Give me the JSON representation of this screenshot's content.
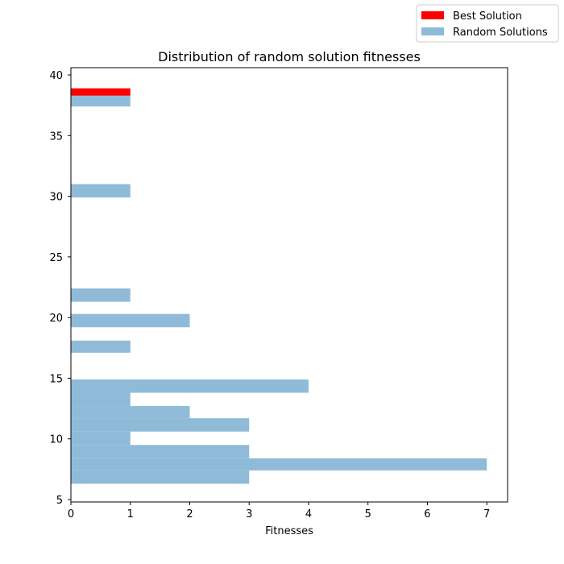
{
  "chart_data": {
    "type": "bar",
    "orientation": "horizontal",
    "title": "Distribution of random solution fitnesses",
    "xlabel": "Fitnesses",
    "ylabel": "",
    "xlim": [
      0,
      7.35
    ],
    "ylim": [
      4.8,
      40.6
    ],
    "x_ticks": [
      0,
      1,
      2,
      3,
      4,
      5,
      6,
      7
    ],
    "y_ticks": [
      5,
      10,
      15,
      20,
      25,
      30,
      35,
      40
    ],
    "grid": false,
    "legend_position": "top-right",
    "series": [
      {
        "name": "Best Solution",
        "color": "#ff0000",
        "bins": [
          {
            "y0": 38.3,
            "y1": 38.9,
            "value": 1
          }
        ]
      },
      {
        "name": "Random Solutions",
        "color": "#8fbbd9",
        "bins": [
          {
            "y0": 6.3,
            "y1": 7.4,
            "value": 3
          },
          {
            "y0": 7.4,
            "y1": 8.4,
            "value": 7
          },
          {
            "y0": 8.4,
            "y1": 9.5,
            "value": 3
          },
          {
            "y0": 9.5,
            "y1": 10.6,
            "value": 1
          },
          {
            "y0": 10.6,
            "y1": 11.7,
            "value": 3
          },
          {
            "y0": 11.7,
            "y1": 12.7,
            "value": 2
          },
          {
            "y0": 12.7,
            "y1": 13.8,
            "value": 1
          },
          {
            "y0": 13.8,
            "y1": 14.9,
            "value": 4
          },
          {
            "y0": 17.1,
            "y1": 18.1,
            "value": 1
          },
          {
            "y0": 19.2,
            "y1": 20.3,
            "value": 2
          },
          {
            "y0": 21.3,
            "y1": 22.4,
            "value": 1
          },
          {
            "y0": 29.9,
            "y1": 31.0,
            "value": 1
          },
          {
            "y0": 37.4,
            "y1": 38.5,
            "value": 1
          }
        ]
      }
    ]
  }
}
